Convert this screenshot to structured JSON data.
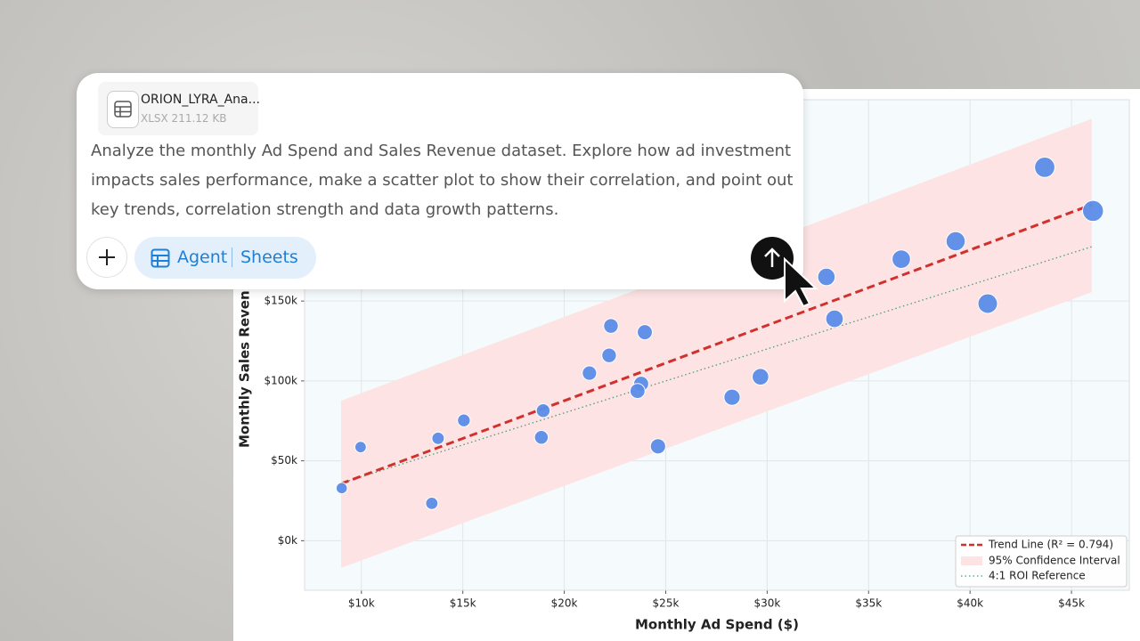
{
  "attachment": {
    "name": "ORION_LYRA_Ana...",
    "meta": "XLSX 211.12 KB"
  },
  "prompt": {
    "lines": [
      "Analyze the monthly Ad Spend and Sales Revenue dataset. Explore how ad investment",
      "impacts sales performance, make a scatter plot to show their correlation, and point out",
      "key trends, correlation strength and data growth patterns."
    ]
  },
  "mode": {
    "agent": "Agent",
    "tool": "Sheets"
  },
  "chart_data": {
    "type": "scatter",
    "x_label": "Monthly Ad Spend ($)",
    "y_label": "Monthly Sales Reven",
    "x": [
      9030,
      9960,
      13470,
      13780,
      15050,
      18870,
      18960,
      21240,
      22210,
      22300,
      23970,
      23790,
      23610,
      24620,
      28270,
      29670,
      32920,
      33320,
      36610,
      39290,
      40870,
      43680,
      46060
    ],
    "values": [
      32900,
      58600,
      23400,
      64100,
      75300,
      64700,
      81400,
      104900,
      116000,
      134400,
      130500,
      98200,
      93700,
      59100,
      89800,
      102600,
      165100,
      138900,
      176200,
      187400,
      148400,
      233700,
      206400
    ],
    "color": "#5b8de8",
    "xlim": [
      7200,
      47850
    ],
    "ylim": [
      -31000,
      276000
    ],
    "xticks": [
      {
        "value": 10000,
        "label": "$10k"
      },
      {
        "value": 15000,
        "label": "$15k"
      },
      {
        "value": 20000,
        "label": "$20k"
      },
      {
        "value": 25000,
        "label": "$25k"
      },
      {
        "value": 30000,
        "label": "$30k"
      },
      {
        "value": 35000,
        "label": "$35k"
      },
      {
        "value": 40000,
        "label": "$40k"
      },
      {
        "value": 45000,
        "label": "$45k"
      }
    ],
    "yticks": [
      {
        "value": 0,
        "label": "$0k"
      },
      {
        "value": 50000,
        "label": "$50k"
      },
      {
        "value": 100000,
        "label": "$100k"
      },
      {
        "value": 150000,
        "label": "$150k"
      }
    ],
    "grid": true,
    "legend": "lower right",
    "trend": {
      "name": "Trend Line (R² = 0.794)",
      "color": "#d0312d",
      "x": [
        9000,
        46000
      ],
      "y": [
        35700,
        210300
      ]
    },
    "band": {
      "name": "95% Confidence Interval",
      "color": "#fde3e3",
      "x": [
        9000,
        46000
      ],
      "upper": [
        87600,
        264000
      ],
      "lower": [
        -17000,
        155600
      ]
    },
    "reference": {
      "name": "4:1 ROI Reference",
      "color": "#4a9e7a",
      "x": [
        9000,
        46000
      ],
      "y": [
        36000,
        184000
      ]
    }
  }
}
